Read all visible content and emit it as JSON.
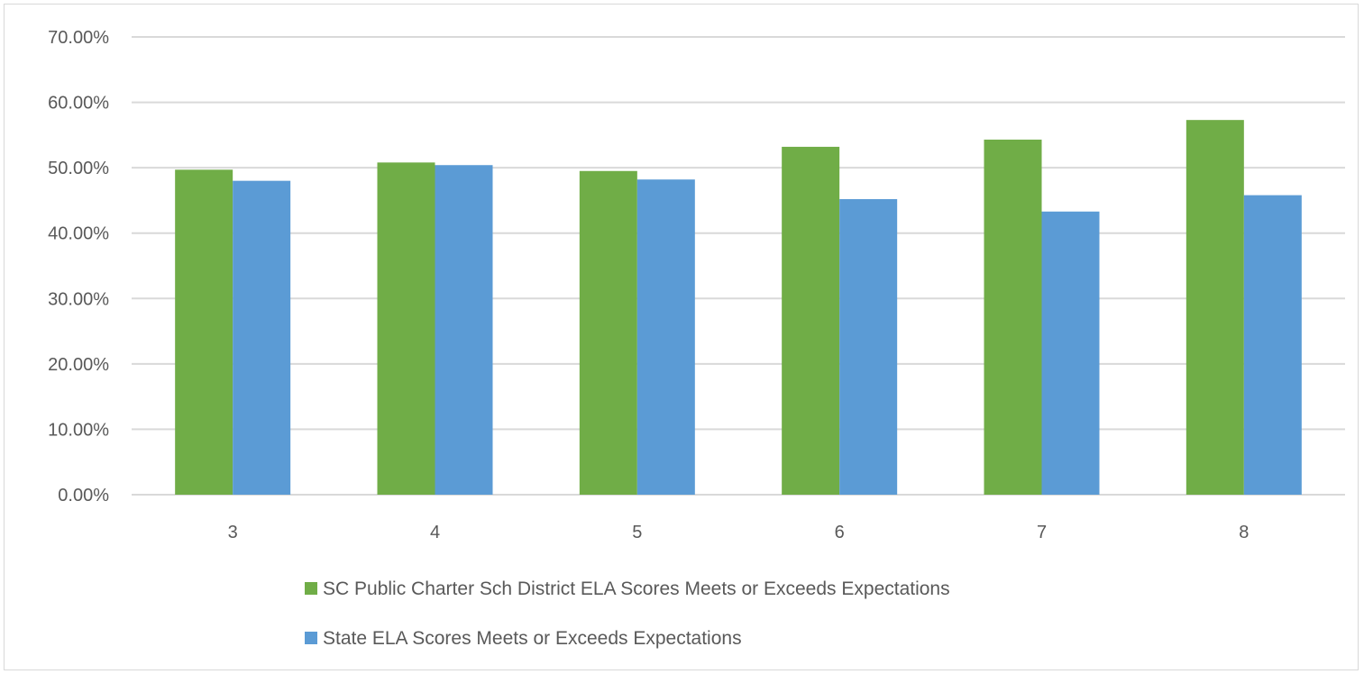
{
  "chart_data": {
    "type": "bar",
    "categories": [
      "3",
      "4",
      "5",
      "6",
      "7",
      "8"
    ],
    "series": [
      {
        "name": "SC Public Charter Sch District ELA Scores Meets or Exceeds Expectations",
        "color": "#70ad47",
        "values": [
          49.7,
          50.8,
          49.5,
          53.2,
          54.3,
          57.3
        ]
      },
      {
        "name": "State ELA Scores Meets or Exceeds Expectations",
        "color": "#5b9bd5",
        "values": [
          48.0,
          50.4,
          48.2,
          45.2,
          43.3,
          45.8
        ]
      }
    ],
    "ylim": [
      0,
      70
    ],
    "yticks": [
      0,
      10,
      20,
      30,
      40,
      50,
      60,
      70
    ],
    "ytick_labels": [
      "0.00%",
      "10.00%",
      "20.00%",
      "30.00%",
      "40.00%",
      "50.00%",
      "60.00%",
      "70.00%"
    ],
    "grid": true,
    "gridline_color": "#d9d9d9",
    "legend_position": "bottom"
  }
}
